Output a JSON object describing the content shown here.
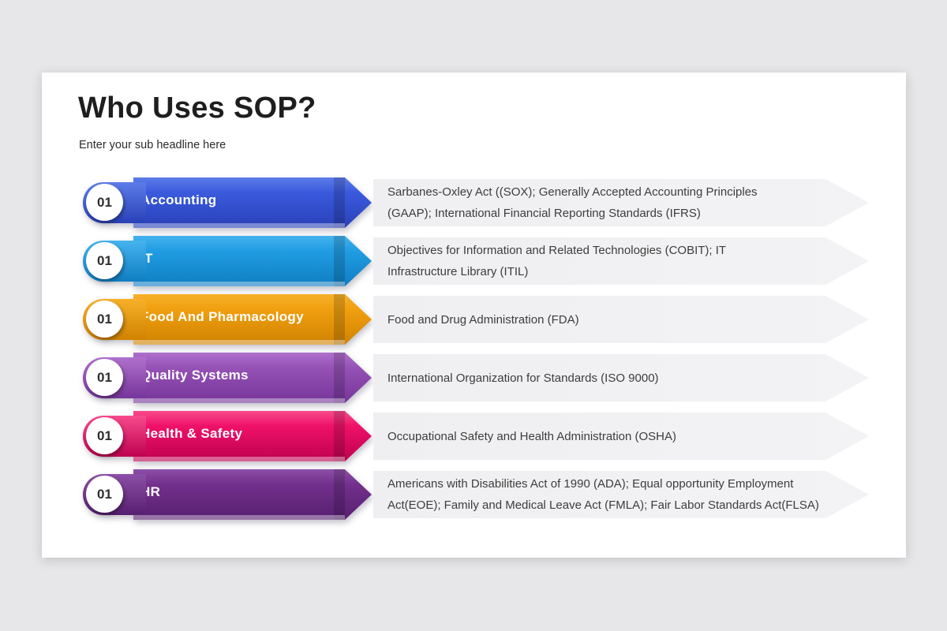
{
  "page": {
    "title": "Who Uses SOP?",
    "subtitle": "Enter your sub headline here",
    "background_color": "#e7e7e9",
    "card_color": "#ffffff",
    "description_banner_color": "#f0f0f2"
  },
  "rows": [
    {
      "number": "01",
      "label": "Accounting",
      "description": "Sarbanes-Oxley Act ((SOX); Generally Accepted Accounting Principles\n(GAAP); International Financial Reporting Standards (IFRS)",
      "colors": {
        "light": "#5c7ce8",
        "mid": "#3a5adc",
        "dark": "#2a41b8"
      }
    },
    {
      "number": "01",
      "label": "IT",
      "description": "Objectives for Information and Related Technologies (COBIT); IT\nInfrastructure Library (ITIL)",
      "colors": {
        "light": "#45b3ee",
        "mid": "#209ce2",
        "dark": "#0f7ec2"
      }
    },
    {
      "number": "01",
      "label": "Food And Pharmacology",
      "description": "Food and Drug Administration (FDA)",
      "colors": {
        "light": "#f7b02a",
        "mid": "#ef9f0f",
        "dark": "#d08200"
      }
    },
    {
      "number": "01",
      "label": "Quality Systems",
      "description": "International Organization for Standards (ISO 9000)",
      "colors": {
        "light": "#af70cc",
        "mid": "#9551b4",
        "dark": "#76359a"
      }
    },
    {
      "number": "01",
      "label": "Health & Safety",
      "description": "Occupational Safety and Health Administration (OSHA)",
      "colors": {
        "light": "#f84a8c",
        "mid": "#ee1168",
        "dark": "#be0150"
      }
    },
    {
      "number": "01",
      "label": "HR",
      "description": "Americans with Disabilities Act of 1990 (ADA); Equal opportunity Employment\nAct(EOE); Family and Medical Leave Act (FMLA); Fair Labor Standards Act(FLSA)",
      "colors": {
        "light": "#8c4fa6",
        "mid": "#72308c",
        "dark": "#571f70"
      }
    }
  ]
}
